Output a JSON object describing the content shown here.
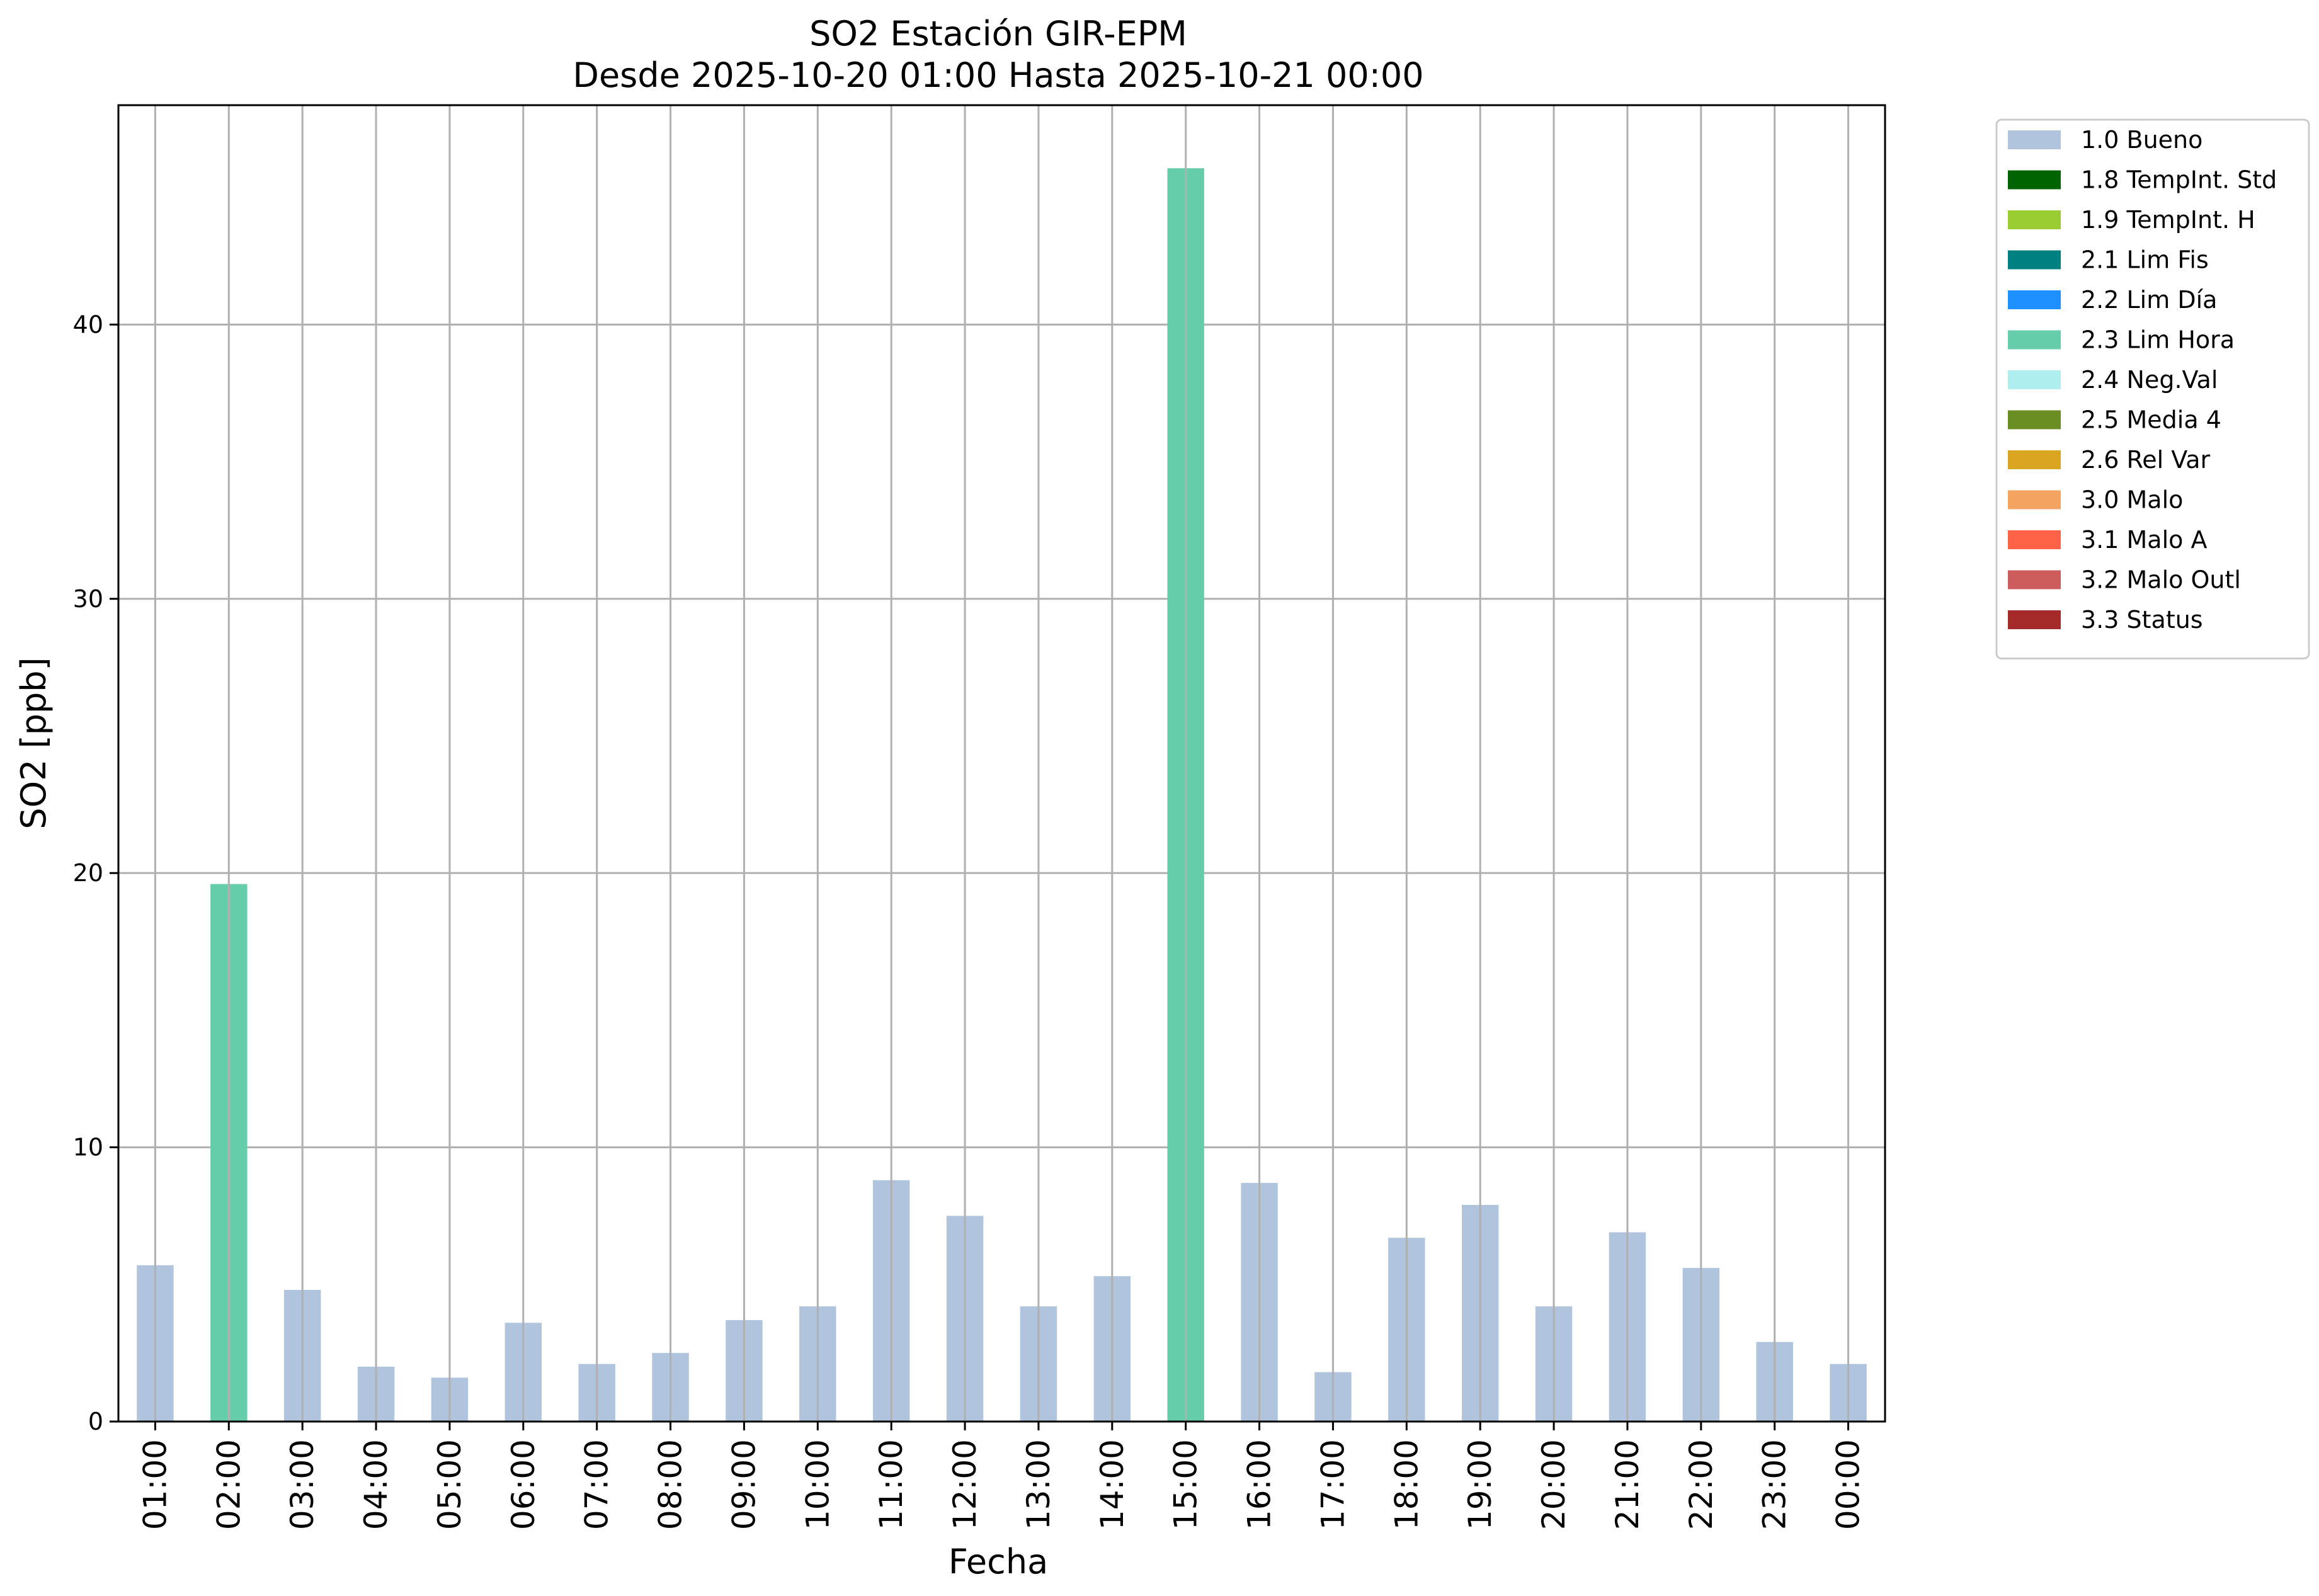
{
  "chart_data": {
    "type": "bar",
    "title": "SO2 Estación GIR-EPM",
    "subtitle": "Desde 2025-10-20 01:00 Hasta 2025-10-21 00:00",
    "xlabel": "Fecha",
    "ylabel": "SO2 [ppb]",
    "ylim": [
      0,
      48
    ],
    "yticks": [
      0,
      10,
      20,
      30,
      40
    ],
    "grid": true,
    "legend_position": "outside-top-right",
    "categories": [
      "01:00",
      "02:00",
      "03:00",
      "04:00",
      "05:00",
      "06:00",
      "07:00",
      "08:00",
      "09:00",
      "10:00",
      "11:00",
      "12:00",
      "13:00",
      "14:00",
      "15:00",
      "16:00",
      "17:00",
      "18:00",
      "19:00",
      "20:00",
      "21:00",
      "22:00",
      "23:00",
      "00:00"
    ],
    "values": [
      5.7,
      19.6,
      4.8,
      2.0,
      1.6,
      3.6,
      2.1,
      2.5,
      3.7,
      4.2,
      8.8,
      7.5,
      4.2,
      5.3,
      45.7,
      8.7,
      1.8,
      6.7,
      7.9,
      4.2,
      6.9,
      5.6,
      2.9,
      2.1
    ],
    "flags": [
      "1.0 Bueno",
      "2.3 Lim Hora",
      "1.0 Bueno",
      "1.0 Bueno",
      "1.0 Bueno",
      "1.0 Bueno",
      "1.0 Bueno",
      "1.0 Bueno",
      "1.0 Bueno",
      "1.0 Bueno",
      "1.0 Bueno",
      "1.0 Bueno",
      "1.0 Bueno",
      "1.0 Bueno",
      "2.3 Lim Hora",
      "1.0 Bueno",
      "1.0 Bueno",
      "1.0 Bueno",
      "1.0 Bueno",
      "1.0 Bueno",
      "1.0 Bueno",
      "1.0 Bueno",
      "1.0 Bueno",
      "1.0 Bueno"
    ],
    "legend": [
      {
        "label": "1.0 Bueno",
        "color": "#b0c4de"
      },
      {
        "label": "1.8 TempInt. Std",
        "color": "#006400"
      },
      {
        "label": "1.9 TempInt. H",
        "color": "#9acd32"
      },
      {
        "label": "2.1 Lim Fis",
        "color": "#008080"
      },
      {
        "label": "2.2 Lim Día",
        "color": "#1e90ff"
      },
      {
        "label": "2.3 Lim Hora",
        "color": "#66cdaa"
      },
      {
        "label": "2.4 Neg.Val",
        "color": "#afeeee"
      },
      {
        "label": "2.5 Media 4",
        "color": "#6b8e23"
      },
      {
        "label": "2.6 Rel Var",
        "color": "#daa520"
      },
      {
        "label": "3.0 Malo",
        "color": "#f4a460"
      },
      {
        "label": "3.1 Malo A",
        "color": "#ff6347"
      },
      {
        "label": "3.2 Malo Outl",
        "color": "#cd5c5c"
      },
      {
        "label": "3.3 Status",
        "color": "#a52a2a"
      }
    ]
  }
}
